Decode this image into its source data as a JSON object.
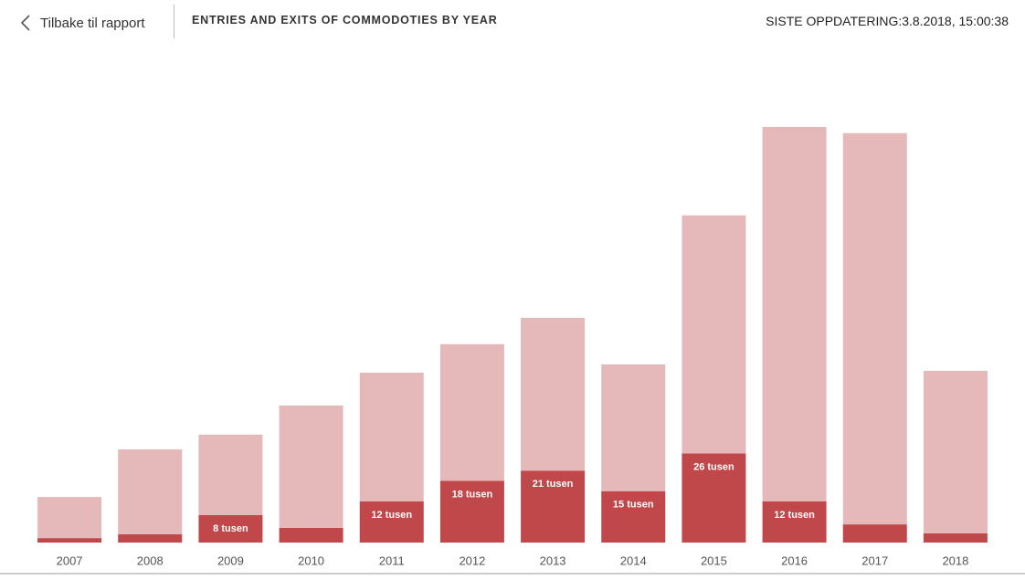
{
  "header": {
    "back": "Tilbake til rapport",
    "updated": "SISTE OPPDATERING:3.8.2018, 15:00:38"
  },
  "chart_data": {
    "type": "stacked-bar",
    "title": "ENTRIES AND EXITS OF COMMODOTIES BY YEAR",
    "categories": [
      "2007",
      "2008",
      "2009",
      "2010",
      "2011",
      "2012",
      "2013",
      "2014",
      "2015",
      "2016",
      "2017",
      "2018"
    ],
    "series": [
      {
        "color": "#c0474a",
        "values": [
          1.3,
          2.4,
          8,
          4.3,
          12,
          18,
          21,
          15,
          26,
          12,
          5.3,
          2.7
        ],
        "value_labels": [
          null,
          null,
          "8 tusen",
          null,
          "12 tusen",
          "18 tusen",
          "21 tusen",
          "15 tusen",
          "26 tusen",
          "12 tusen",
          null,
          null
        ]
      },
      {
        "color": "#e5b8b9",
        "values": [
          12,
          24.8,
          23.5,
          35.7,
          37.6,
          39.9,
          44.6,
          37,
          69.5,
          109.3,
          114.2,
          47.4
        ]
      }
    ]
  }
}
